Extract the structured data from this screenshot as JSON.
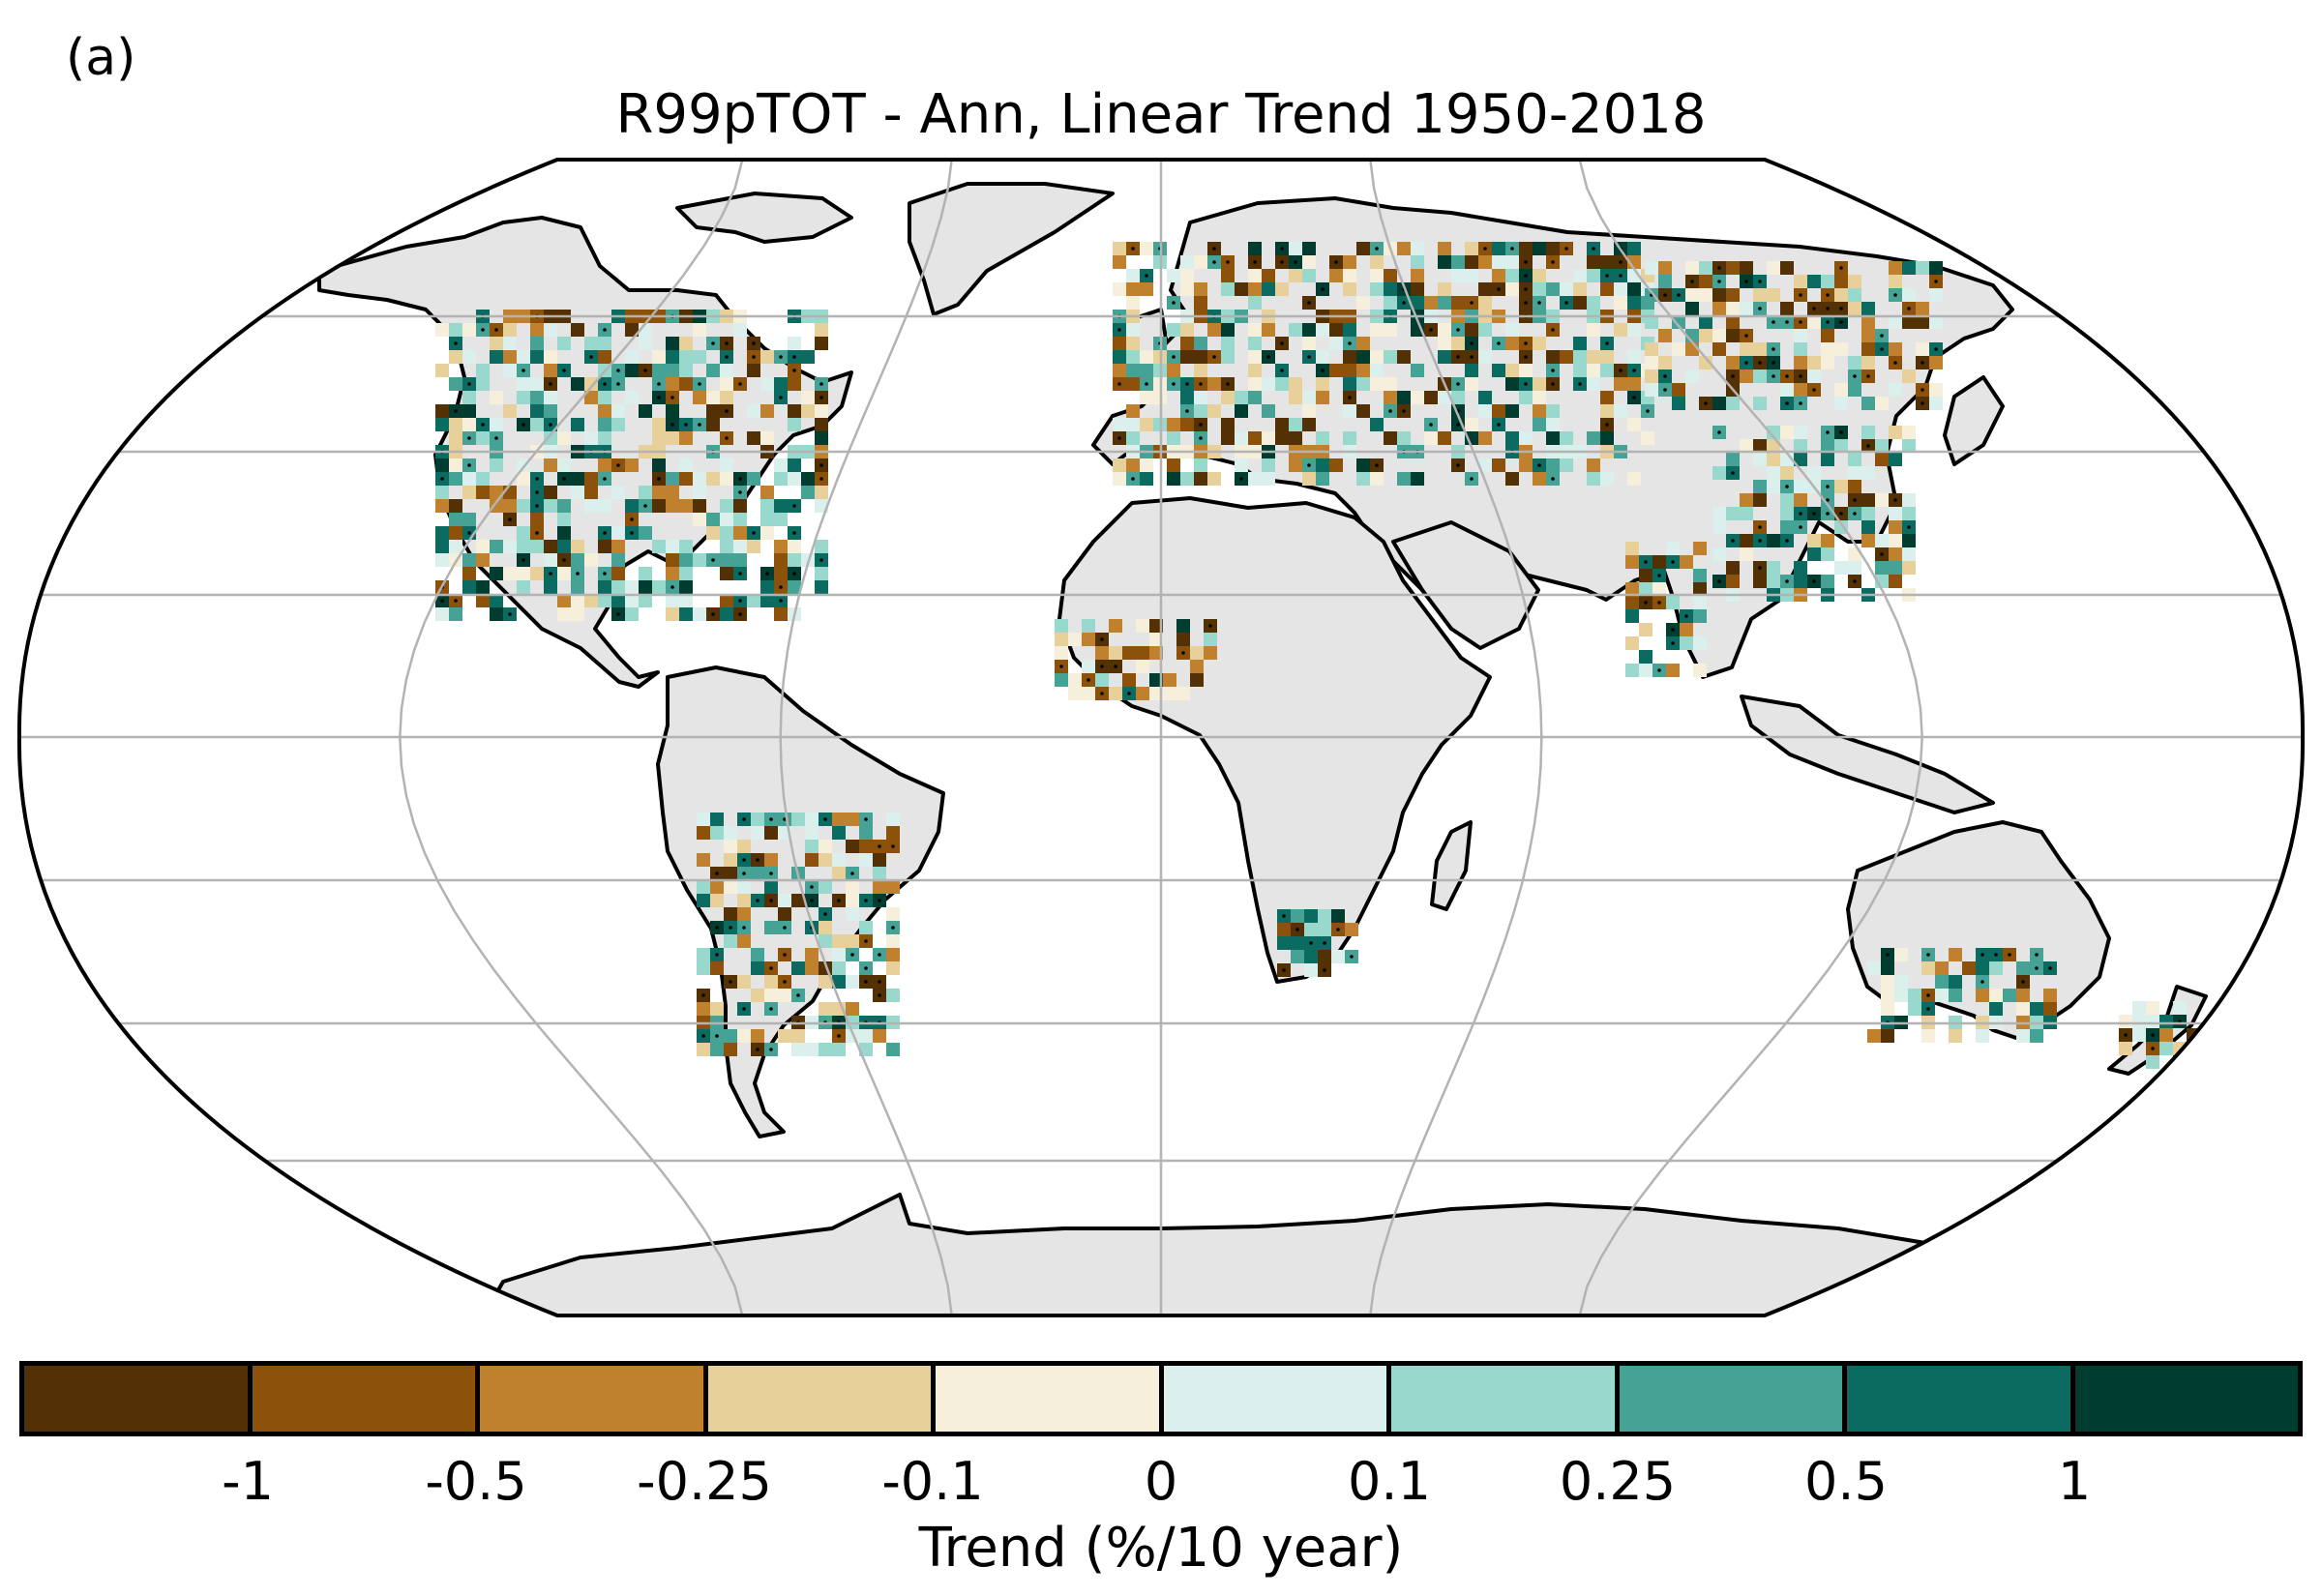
{
  "panel_label": "(a)",
  "title": "R99pTOT - Ann, Linear Trend 1950-2018",
  "colorbar": {
    "label": "Trend (%/10 year)",
    "ticks": [
      "-1",
      "-0.5",
      "-0.25",
      "-0.1",
      "0",
      "0.1",
      "0.25",
      "0.5",
      "1"
    ],
    "colors": [
      "#543005",
      "#8c510a",
      "#bf812d",
      "#e7d09a",
      "#f6efdc",
      "#dbf0ec",
      "#99d8cc",
      "#45a294",
      "#0b6b60",
      "#003c30"
    ]
  },
  "map": {
    "projection": "Robinson",
    "land_color": "#e5e5e5",
    "ocean_color": "#ffffff",
    "graticule_color": "#b3b3b3",
    "coastline_color": "#000000",
    "stippling": "significant trends marked with black dots"
  }
}
